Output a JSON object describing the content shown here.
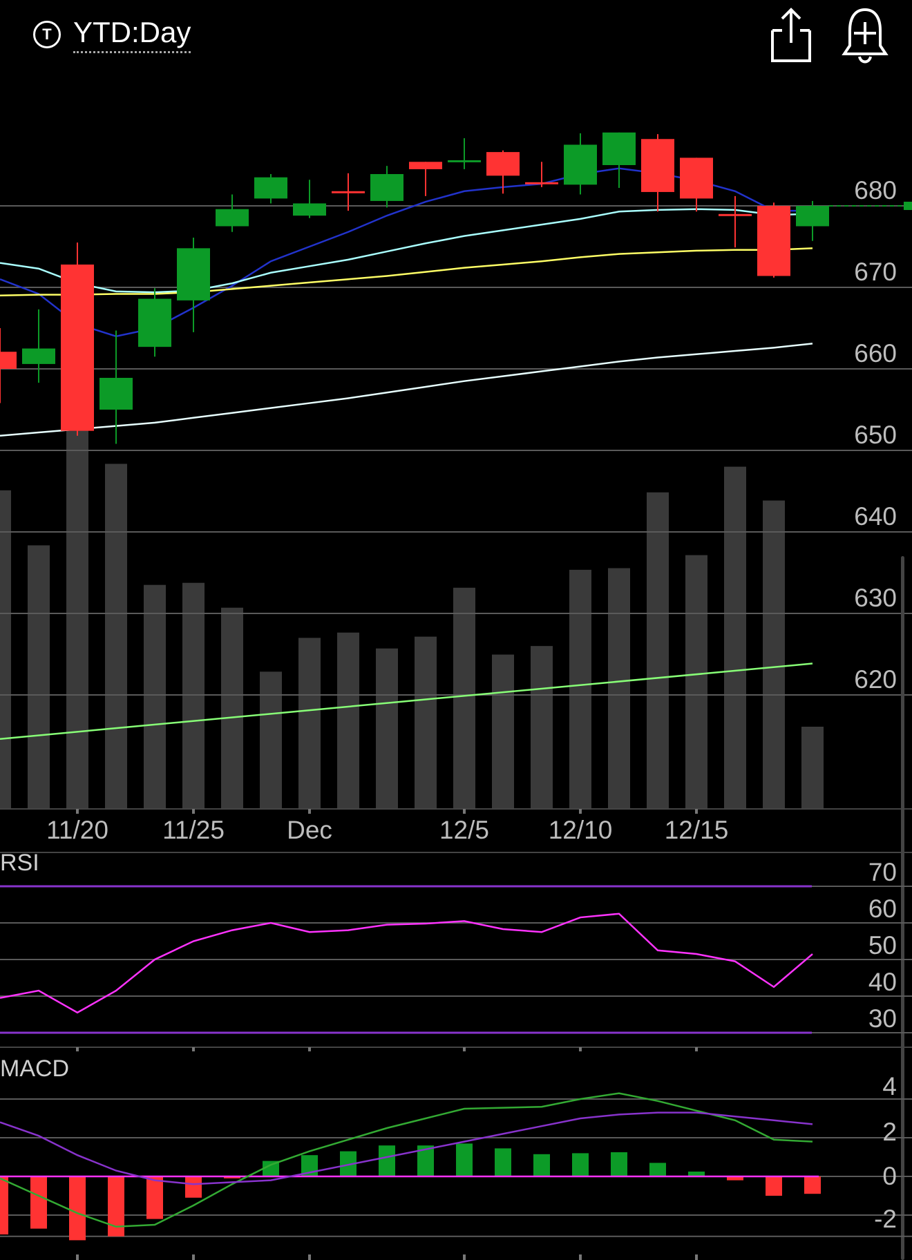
{
  "header": {
    "symbol_icon_letter": "T",
    "period_label": "YTD:Day",
    "share_icon": "share-icon",
    "alert_icon": "add-alert-bell-icon"
  },
  "chart_data": [
    {
      "type": "candlestick",
      "y_ticks": [
        680,
        670,
        660,
        650,
        640,
        630,
        620
      ],
      "ylim": [
        610,
        695
      ],
      "x_ticks": [
        {
          "label": "11/20",
          "index": 2
        },
        {
          "label": "11/25",
          "index": 5
        },
        {
          "label": "Dec",
          "index": 8
        },
        {
          "label": "12/5",
          "index": 12
        },
        {
          "label": "12/10",
          "index": 15
        },
        {
          "label": "12/15",
          "index": 18
        }
      ],
      "candles": [
        {
          "i": 0,
          "o": 662.1,
          "c": 660.0,
          "h": 665.0,
          "l": 655.8,
          "up": false
        },
        {
          "i": 1,
          "o": 660.6,
          "c": 662.5,
          "h": 667.3,
          "l": 658.3,
          "up": true
        },
        {
          "i": 2,
          "o": 672.8,
          "c": 652.4,
          "h": 675.5,
          "l": 651.8,
          "up": false
        },
        {
          "i": 3,
          "o": 655.0,
          "c": 658.9,
          "h": 664.7,
          "l": 650.8,
          "up": true
        },
        {
          "i": 4,
          "o": 662.7,
          "c": 668.6,
          "h": 669.9,
          "l": 661.5,
          "up": true
        },
        {
          "i": 5,
          "o": 668.4,
          "c": 674.8,
          "h": 676.1,
          "l": 664.5,
          "up": true
        },
        {
          "i": 6,
          "o": 677.5,
          "c": 679.6,
          "h": 681.4,
          "l": 676.8,
          "up": true
        },
        {
          "i": 7,
          "o": 680.9,
          "c": 683.5,
          "h": 683.9,
          "l": 680.3,
          "up": true
        },
        {
          "i": 8,
          "o": 678.8,
          "c": 680.3,
          "h": 683.2,
          "l": 678.5,
          "up": true
        },
        {
          "i": 9,
          "o": 681.8,
          "c": 681.8,
          "h": 684.0,
          "l": 679.4,
          "up": false
        },
        {
          "i": 10,
          "o": 680.6,
          "c": 683.9,
          "h": 684.9,
          "l": 679.8,
          "up": true
        },
        {
          "i": 11,
          "o": 685.4,
          "c": 684.5,
          "h": 685.4,
          "l": 681.2,
          "up": false
        },
        {
          "i": 12,
          "o": 685.6,
          "c": 685.6,
          "h": 688.3,
          "l": 684.5,
          "up": true
        },
        {
          "i": 13,
          "o": 686.6,
          "c": 683.7,
          "h": 686.8,
          "l": 681.5,
          "up": false
        },
        {
          "i": 14,
          "o": 682.9,
          "c": 682.9,
          "h": 685.4,
          "l": 682.3,
          "up": false
        },
        {
          "i": 15,
          "o": 682.6,
          "c": 687.5,
          "h": 688.9,
          "l": 681.4,
          "up": true
        },
        {
          "i": 16,
          "o": 685.0,
          "c": 689.0,
          "h": 689.0,
          "l": 682.2,
          "up": true
        },
        {
          "i": 17,
          "o": 688.2,
          "c": 681.7,
          "h": 688.8,
          "l": 679.3,
          "up": false
        },
        {
          "i": 18,
          "o": 685.9,
          "c": 680.9,
          "h": 685.9,
          "l": 679.3,
          "up": false
        },
        {
          "i": 19,
          "o": 679.0,
          "c": 678.8,
          "h": 681.2,
          "l": 674.9,
          "up": false
        },
        {
          "i": 20,
          "o": 680.0,
          "c": 671.4,
          "h": 680.4,
          "l": 671.2,
          "up": false
        },
        {
          "i": 21,
          "o": 677.5,
          "c": 680.0,
          "h": 680.6,
          "l": 675.7,
          "up": true
        }
      ],
      "ma_lines": [
        {
          "name": "",
          "color": "#2233cc",
          "points": [
            [
              0,
              671
            ],
            [
              1,
              669.2
            ],
            [
              2,
              665.5
            ],
            [
              3,
              664
            ],
            [
              4,
              665
            ],
            [
              5,
              667.5
            ],
            [
              6,
              670.2
            ],
            [
              7,
              673.2
            ],
            [
              8,
              675
            ],
            [
              9,
              676.8
            ],
            [
              10,
              678.8
            ],
            [
              11,
              680.5
            ],
            [
              12,
              681.8
            ],
            [
              13,
              682.3
            ],
            [
              14,
              682.7
            ],
            [
              15,
              683.9
            ],
            [
              16,
              684.6
            ],
            [
              17,
              684
            ],
            [
              18,
              683.1
            ],
            [
              19,
              681.8
            ],
            [
              20,
              679.4
            ],
            [
              21,
              679.4
            ]
          ]
        },
        {
          "name": "",
          "color": "#aaffff",
          "points": [
            [
              0,
              673
            ],
            [
              1,
              672.3
            ],
            [
              2,
              670.5
            ],
            [
              3,
              669.5
            ],
            [
              4,
              669.4
            ],
            [
              5,
              669.6
            ],
            [
              6,
              670.5
            ],
            [
              7,
              671.8
            ],
            [
              8,
              672.6
            ],
            [
              9,
              673.4
            ],
            [
              10,
              674.4
            ],
            [
              11,
              675.4
            ],
            [
              12,
              676.3
            ],
            [
              13,
              677
            ],
            [
              14,
              677.7
            ],
            [
              15,
              678.4
            ],
            [
              16,
              679.3
            ],
            [
              17,
              679.5
            ],
            [
              18,
              679.6
            ],
            [
              19,
              679.5
            ],
            [
              20,
              678.9
            ],
            [
              21,
              679
            ]
          ]
        },
        {
          "name": "",
          "color": "#ffff66",
          "points": [
            [
              0,
              669
            ],
            [
              1,
              669.1
            ],
            [
              2,
              669.1
            ],
            [
              3,
              669.2
            ],
            [
              4,
              669.2
            ],
            [
              5,
              669.4
            ],
            [
              6,
              669.8
            ],
            [
              7,
              670.2
            ],
            [
              8,
              670.6
            ],
            [
              9,
              671
            ],
            [
              10,
              671.4
            ],
            [
              11,
              671.9
            ],
            [
              12,
              672.4
            ],
            [
              13,
              672.8
            ],
            [
              14,
              673.2
            ],
            [
              15,
              673.7
            ],
            [
              16,
              674.1
            ],
            [
              17,
              674.3
            ],
            [
              18,
              674.5
            ],
            [
              19,
              674.6
            ],
            [
              20,
              674.6
            ],
            [
              21,
              674.8
            ]
          ]
        },
        {
          "name": "",
          "color": "#e8ffff",
          "points": [
            [
              0,
              651.8
            ],
            [
              1,
              652.2
            ],
            [
              2,
              652.6
            ],
            [
              3,
              653
            ],
            [
              4,
              653.4
            ],
            [
              5,
              654
            ],
            [
              6,
              654.6
            ],
            [
              7,
              655.2
            ],
            [
              8,
              655.8
            ],
            [
              9,
              656.4
            ],
            [
              10,
              657.1
            ],
            [
              11,
              657.8
            ],
            [
              12,
              658.5
            ],
            [
              13,
              659.1
            ],
            [
              14,
              659.7
            ],
            [
              15,
              660.3
            ],
            [
              16,
              660.9
            ],
            [
              17,
              661.4
            ],
            [
              18,
              661.8
            ],
            [
              19,
              662.2
            ],
            [
              20,
              662.6
            ],
            [
              21,
              663.1
            ]
          ]
        }
      ],
      "last_price_marker": 680
    },
    {
      "type": "bar",
      "name": "volume",
      "values": [
        0.78,
        0.645,
        1.02,
        0.845,
        0.548,
        0.553,
        0.492,
        0.335,
        0.418,
        0.431,
        0.392,
        0.421,
        0.541,
        0.377,
        0.398,
        0.585,
        0.589,
        0.775,
        0.621,
        0.838,
        0.755,
        0.2
      ],
      "avg_line": [
        [
          0,
          0.17
        ],
        [
          21,
          0.355
        ]
      ],
      "avg_color": "#88ff77"
    },
    {
      "type": "line",
      "title": "RSI",
      "y_ticks": [
        70,
        60,
        50,
        40,
        30
      ],
      "ylim": [
        27,
        73
      ],
      "thresholds": [
        70,
        30
      ],
      "values": [
        39.5,
        41.5,
        35.5,
        41.5,
        50,
        55,
        58,
        60,
        57.5,
        58,
        59.5,
        59.8,
        60.5,
        58.3,
        57.5,
        61.5,
        62.5,
        52.5,
        51.5,
        49.5,
        42.5,
        51.5
      ],
      "color": "#ff33ff"
    },
    {
      "type": "macd",
      "title": "MACD",
      "y_ticks": [
        4,
        2,
        0,
        -2
      ],
      "ylim": [
        -4,
        5.4
      ],
      "histogram": [
        -3.0,
        -2.7,
        -3.3,
        -3.1,
        -2.2,
        -1.1,
        -0.1,
        0.8,
        1.1,
        1.3,
        1.6,
        1.6,
        1.7,
        1.45,
        1.15,
        1.2,
        1.25,
        0.7,
        0.25,
        -0.2,
        -1.0,
        -0.9
      ],
      "macd": [
        -0.1,
        -1.0,
        -1.9,
        -2.6,
        -2.5,
        -1.5,
        -0.4,
        0.6,
        1.3,
        1.9,
        2.5,
        3.0,
        3.5,
        3.55,
        3.6,
        4.0,
        4.3,
        3.9,
        3.4,
        2.9,
        1.9,
        1.8
      ],
      "signal": [
        2.8,
        2.1,
        1.1,
        0.3,
        -0.2,
        -0.4,
        -0.3,
        -0.2,
        0.2,
        0.6,
        1.0,
        1.4,
        1.8,
        2.2,
        2.6,
        3.0,
        3.2,
        3.3,
        3.3,
        3.1,
        2.9,
        2.7
      ],
      "macd_color": "#33aa33",
      "signal_color": "#8833cc",
      "zero_color": "#ff33ff"
    }
  ]
}
